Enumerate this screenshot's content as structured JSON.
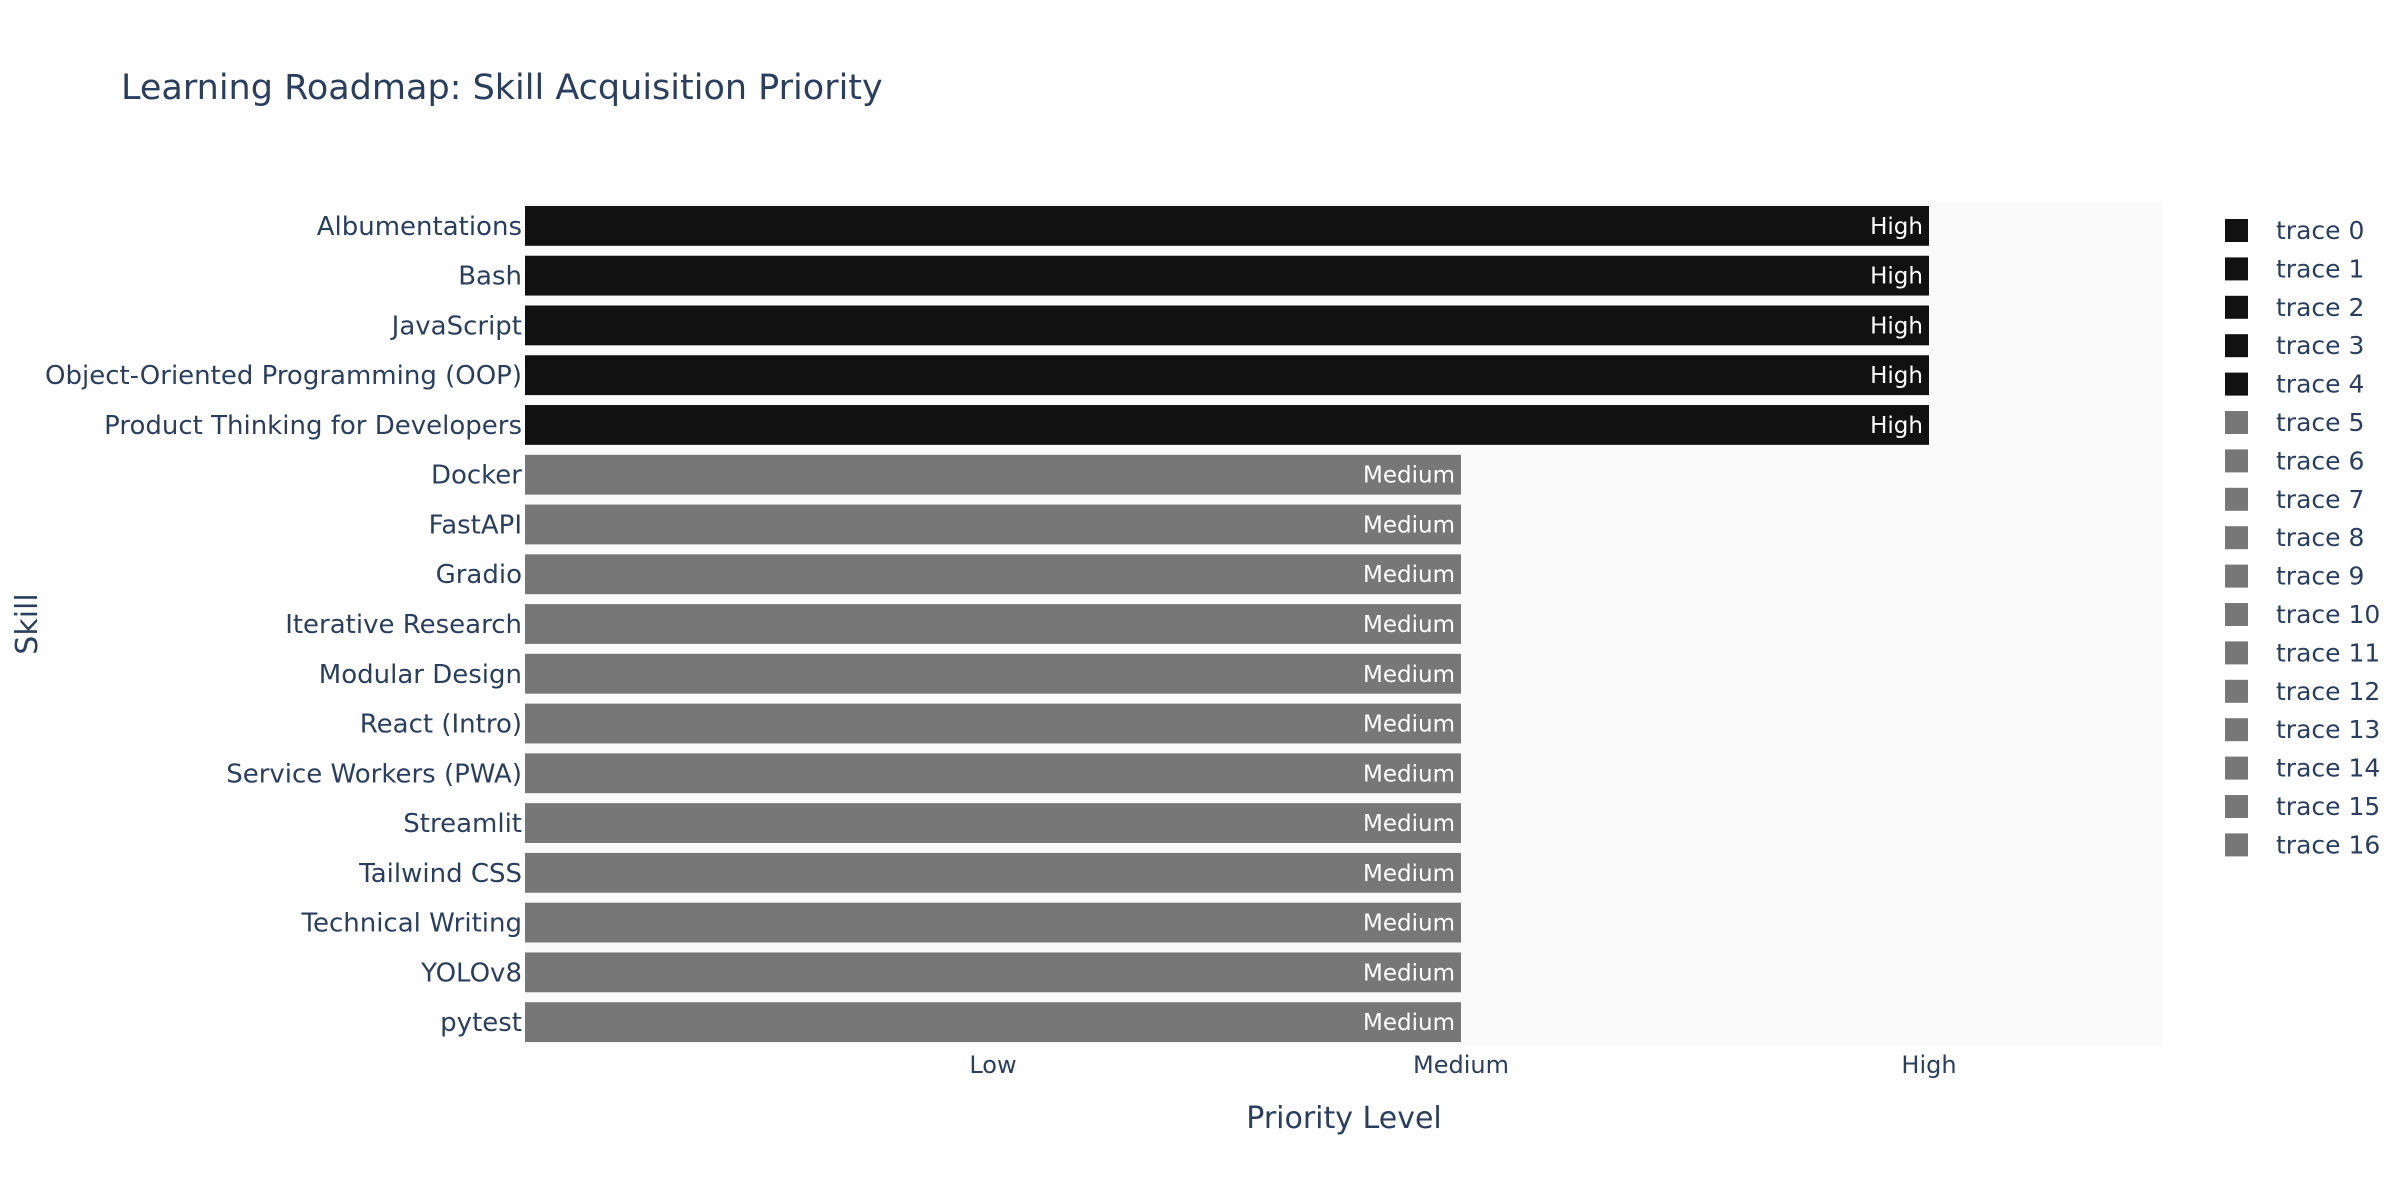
{
  "chart_data": {
    "type": "bar",
    "orientation": "horizontal",
    "title": "Learning Roadmap: Skill Acquisition Priority",
    "xlabel": "Priority Level",
    "ylabel": "Skill",
    "x_ticks": [
      "Low",
      "Medium",
      "High"
    ],
    "x_tick_values": [
      1,
      2,
      3
    ],
    "xlim": [
      0,
      3.5
    ],
    "legend_position": "right",
    "colors": {
      "High": "#111111",
      "Medium": "#777777",
      "plot_bg": "#fafafa",
      "text": "#2a3f5f"
    },
    "series": [
      {
        "name": "trace 0",
        "category": "Albumentations",
        "value": 3,
        "label": "High"
      },
      {
        "name": "trace 1",
        "category": "Bash",
        "value": 3,
        "label": "High"
      },
      {
        "name": "trace 2",
        "category": "JavaScript",
        "value": 3,
        "label": "High"
      },
      {
        "name": "trace 3",
        "category": "Object-Oriented Programming (OOP)",
        "value": 3,
        "label": "High"
      },
      {
        "name": "trace 4",
        "category": "Product Thinking for Developers",
        "value": 3,
        "label": "High"
      },
      {
        "name": "trace 5",
        "category": "Docker",
        "value": 2,
        "label": "Medium"
      },
      {
        "name": "trace 6",
        "category": "FastAPI",
        "value": 2,
        "label": "Medium"
      },
      {
        "name": "trace 7",
        "category": "Gradio",
        "value": 2,
        "label": "Medium"
      },
      {
        "name": "trace 8",
        "category": "Iterative Research",
        "value": 2,
        "label": "Medium"
      },
      {
        "name": "trace 9",
        "category": "Modular Design",
        "value": 2,
        "label": "Medium"
      },
      {
        "name": "trace 10",
        "category": "React (Intro)",
        "value": 2,
        "label": "Medium"
      },
      {
        "name": "trace 11",
        "category": "Service Workers (PWA)",
        "value": 2,
        "label": "Medium"
      },
      {
        "name": "trace 12",
        "category": "Streamlit",
        "value": 2,
        "label": "Medium"
      },
      {
        "name": "trace 13",
        "category": "Tailwind CSS",
        "value": 2,
        "label": "Medium"
      },
      {
        "name": "trace 14",
        "category": "Technical Writing",
        "value": 2,
        "label": "Medium"
      },
      {
        "name": "trace 15",
        "category": "YOLOv8",
        "value": 2,
        "label": "Medium"
      },
      {
        "name": "trace 16",
        "category": "pytest",
        "value": 2,
        "label": "Medium"
      }
    ]
  }
}
